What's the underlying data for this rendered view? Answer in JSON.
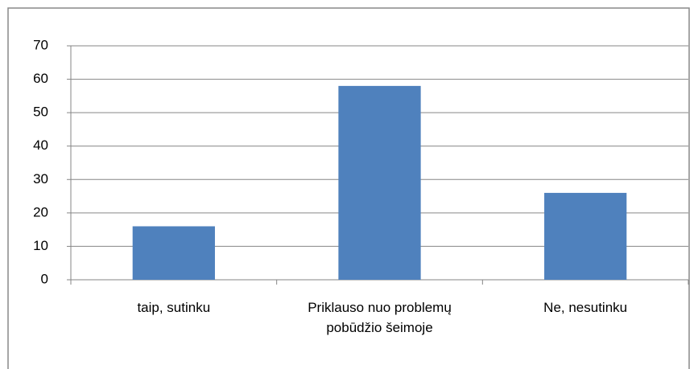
{
  "chart_data": {
    "type": "bar",
    "categories": [
      "taip, sutinku",
      "Priklauso nuo problemų pobūdžio šeimoje",
      "Ne, nesutinku"
    ],
    "values": [
      16,
      58,
      26
    ],
    "color": "#4f81bd",
    "ylim": [
      0,
      70
    ],
    "yticks": [
      0,
      10,
      20,
      30,
      40,
      50,
      60,
      70
    ],
    "grid": true
  }
}
